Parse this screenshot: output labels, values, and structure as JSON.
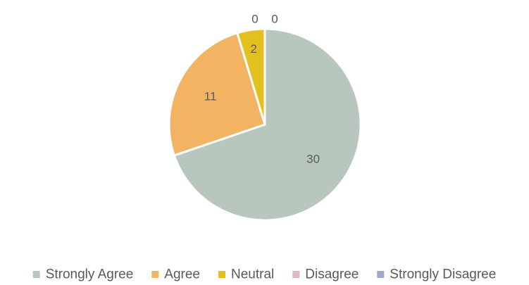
{
  "chart_data": {
    "type": "pie",
    "title": "",
    "categories": [
      "Strongly Agree",
      "Agree",
      "Neutral",
      "Disagree",
      "Strongly Disagree"
    ],
    "values": [
      30,
      11,
      2,
      0,
      0
    ],
    "colors": [
      "#b8c7bd",
      "#f2b363",
      "#e4c01f",
      "#dcb8c3",
      "#9ea8cf"
    ],
    "start_angle_deg": 0,
    "direction": "clockwise",
    "legend_position": "bottom",
    "data_labels": [
      "30",
      "11",
      "2",
      "0",
      "0"
    ]
  }
}
